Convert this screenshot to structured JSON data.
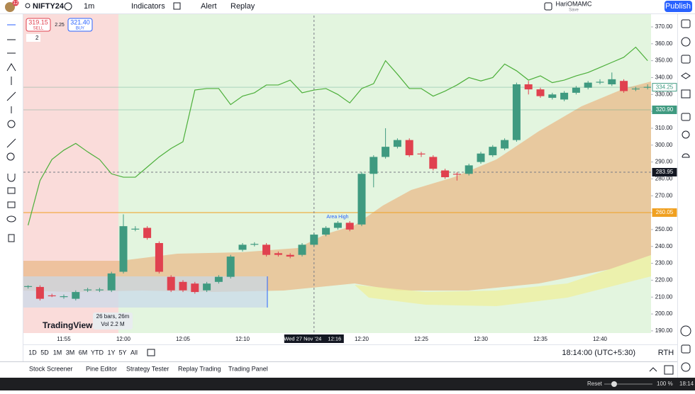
{
  "header": {
    "badge": "12",
    "symbol": "NIFTY24",
    "interval": "1m",
    "indicators": "Indicators",
    "alert": "Alert",
    "replay": "Replay",
    "layout_name": "HariOMAMC",
    "save": "Save",
    "publish": "Publish"
  },
  "trade": {
    "sell_price": "319.15",
    "sell": "SELL",
    "spread": "2.25",
    "buy_price": "321.40",
    "buy": "BUY",
    "count": "2"
  },
  "chart_data": {
    "type": "candlestick",
    "categories": [
      null,
      null,
      null,
      "11:55",
      null,
      null,
      null,
      null,
      "12:00",
      null,
      null,
      null,
      null,
      "12:05",
      null,
      null,
      null,
      null,
      "12:10",
      null,
      null,
      null,
      null,
      null,
      null,
      null,
      null,
      null,
      "12:20",
      null,
      null,
      null,
      null,
      "12:25",
      null,
      null,
      null,
      null,
      "12:30",
      null,
      null,
      null,
      null,
      "12:35",
      null,
      null,
      null,
      null,
      "12:40",
      null,
      null,
      null,
      null
    ],
    "open": [
      216,
      216,
      211,
      210,
      209,
      214,
      214,
      214,
      225,
      250,
      251,
      242,
      222,
      219,
      218,
      214,
      219,
      222,
      238,
      241,
      241,
      236,
      235,
      235,
      241,
      247,
      251,
      254,
      253,
      283,
      293,
      299,
      303,
      295,
      293,
      285,
      283,
      283,
      290,
      294,
      298,
      303,
      336,
      333,
      328,
      327,
      331,
      334,
      337,
      336,
      338,
      333,
      334
    ],
    "high": [
      217,
      217,
      212,
      211.5,
      214,
      215.5,
      215.5,
      225,
      259,
      252,
      252,
      243,
      223,
      220,
      219,
      219,
      223,
      235,
      242,
      242.5,
      242,
      237,
      236,
      242,
      248,
      252,
      255,
      255,
      284,
      294,
      310,
      304,
      304,
      296,
      294,
      286,
      284,
      289,
      296,
      300,
      304,
      337,
      338,
      334,
      331,
      332,
      335,
      338,
      339,
      343,
      339,
      334.5,
      336
    ],
    "low": [
      215,
      208,
      210,
      209,
      208,
      213,
      213,
      213,
      224,
      249,
      244,
      224,
      213,
      213,
      212,
      213,
      218,
      221,
      237,
      240,
      234,
      234,
      233,
      234,
      240,
      246,
      250,
      249,
      252,
      275,
      292,
      298,
      293,
      293,
      285,
      280,
      279,
      282,
      289,
      293,
      297,
      302,
      330,
      328,
      327,
      326,
      330,
      333,
      336,
      335,
      331,
      332,
      333
    ],
    "close": [
      216.5,
      209,
      210.5,
      210.5,
      213,
      214.5,
      214.5,
      224,
      252,
      250.5,
      245,
      225,
      214,
      214,
      213,
      218,
      222,
      234,
      241,
      241.5,
      235,
      235,
      234,
      241,
      247,
      251,
      254,
      250,
      283,
      293,
      299,
      303,
      294,
      294.5,
      286,
      281,
      282.5,
      288,
      295,
      299,
      303,
      336,
      333,
      329,
      330,
      331,
      334,
      337,
      337.5,
      339,
      332,
      333.5,
      334.5
    ],
    "series": [
      {
        "name": "Indicator",
        "color": "#4caf3a",
        "values": [
          252.5,
          279,
          291.5,
          297,
          301,
          296,
          291.5,
          283,
          281,
          281,
          287,
          293,
          298,
          302,
          332.6,
          333.5,
          333.5,
          324,
          329,
          331,
          335.6,
          335.6,
          338.5,
          331,
          332.6,
          333.5,
          330,
          325,
          333.5,
          336.4,
          350,
          342,
          333.5,
          333.5,
          329,
          332,
          335.6,
          340,
          338,
          340,
          348,
          344,
          338.5,
          341,
          337,
          338.5,
          341,
          343,
          346,
          349,
          352,
          358,
          350
        ]
      }
    ],
    "up_color": "#3f9a80",
    "down_color": "#e0414f",
    "ylim": [
      188.7,
      376.7
    ],
    "yticks": [
      {
        "value": 190,
        "label": "190.00"
      },
      {
        "value": 200,
        "label": "200.00"
      },
      {
        "value": 210,
        "label": "210.00"
      },
      {
        "value": 220,
        "label": "220.00"
      },
      {
        "value": 230,
        "label": "230.00"
      },
      {
        "value": 240,
        "label": "240.00"
      },
      {
        "value": 250,
        "label": "250.00"
      },
      {
        "value": 260,
        "label": "260.00"
      },
      {
        "value": 270,
        "label": "270.00"
      },
      {
        "value": 280,
        "label": "280.00"
      },
      {
        "value": 290,
        "label": "290.00"
      },
      {
        "value": 300,
        "label": "300.00"
      },
      {
        "value": 310,
        "label": "310.00"
      },
      {
        "value": 320,
        "label": "320.00"
      },
      {
        "value": 330,
        "label": "330.00"
      },
      {
        "value": 340,
        "label": "340.00"
      },
      {
        "value": 350,
        "label": "350.00"
      },
      {
        "value": 360,
        "label": "360.00"
      },
      {
        "value": 370,
        "label": "370.00"
      }
    ],
    "levels": [
      {
        "value": 334.25,
        "label": "334.25",
        "color": "#3f9a80"
      },
      {
        "value": 320.9,
        "label": "320.90",
        "color": "#3f9a80"
      },
      {
        "value": 283.95,
        "label": "283.95",
        "color": "#131722"
      },
      {
        "value": 260.05,
        "label": "260.05",
        "color": "#f0a020"
      }
    ],
    "crosshair_index": 24,
    "crosshair_date": "Wed 27 Nov '24",
    "crosshair_time": "12:16",
    "annotation": "Area High",
    "measure": {
      "bars": "26 bars, 26m",
      "volume": "Vol 2.2 M"
    },
    "logo": "TradingView"
  },
  "ranges": [
    "1D",
    "5D",
    "1M",
    "3M",
    "6M",
    "YTD",
    "1Y",
    "5Y",
    "All"
  ],
  "clock": "18:14:00 (UTC+5:30)",
  "session": "RTH",
  "tabs": [
    "Stock Screener",
    "Pine Editor",
    "Strategy Tester",
    "Replay Trading",
    "Trading Panel"
  ],
  "os": {
    "reset": "Reset",
    "zoom": "100 %",
    "time": "18:14"
  }
}
